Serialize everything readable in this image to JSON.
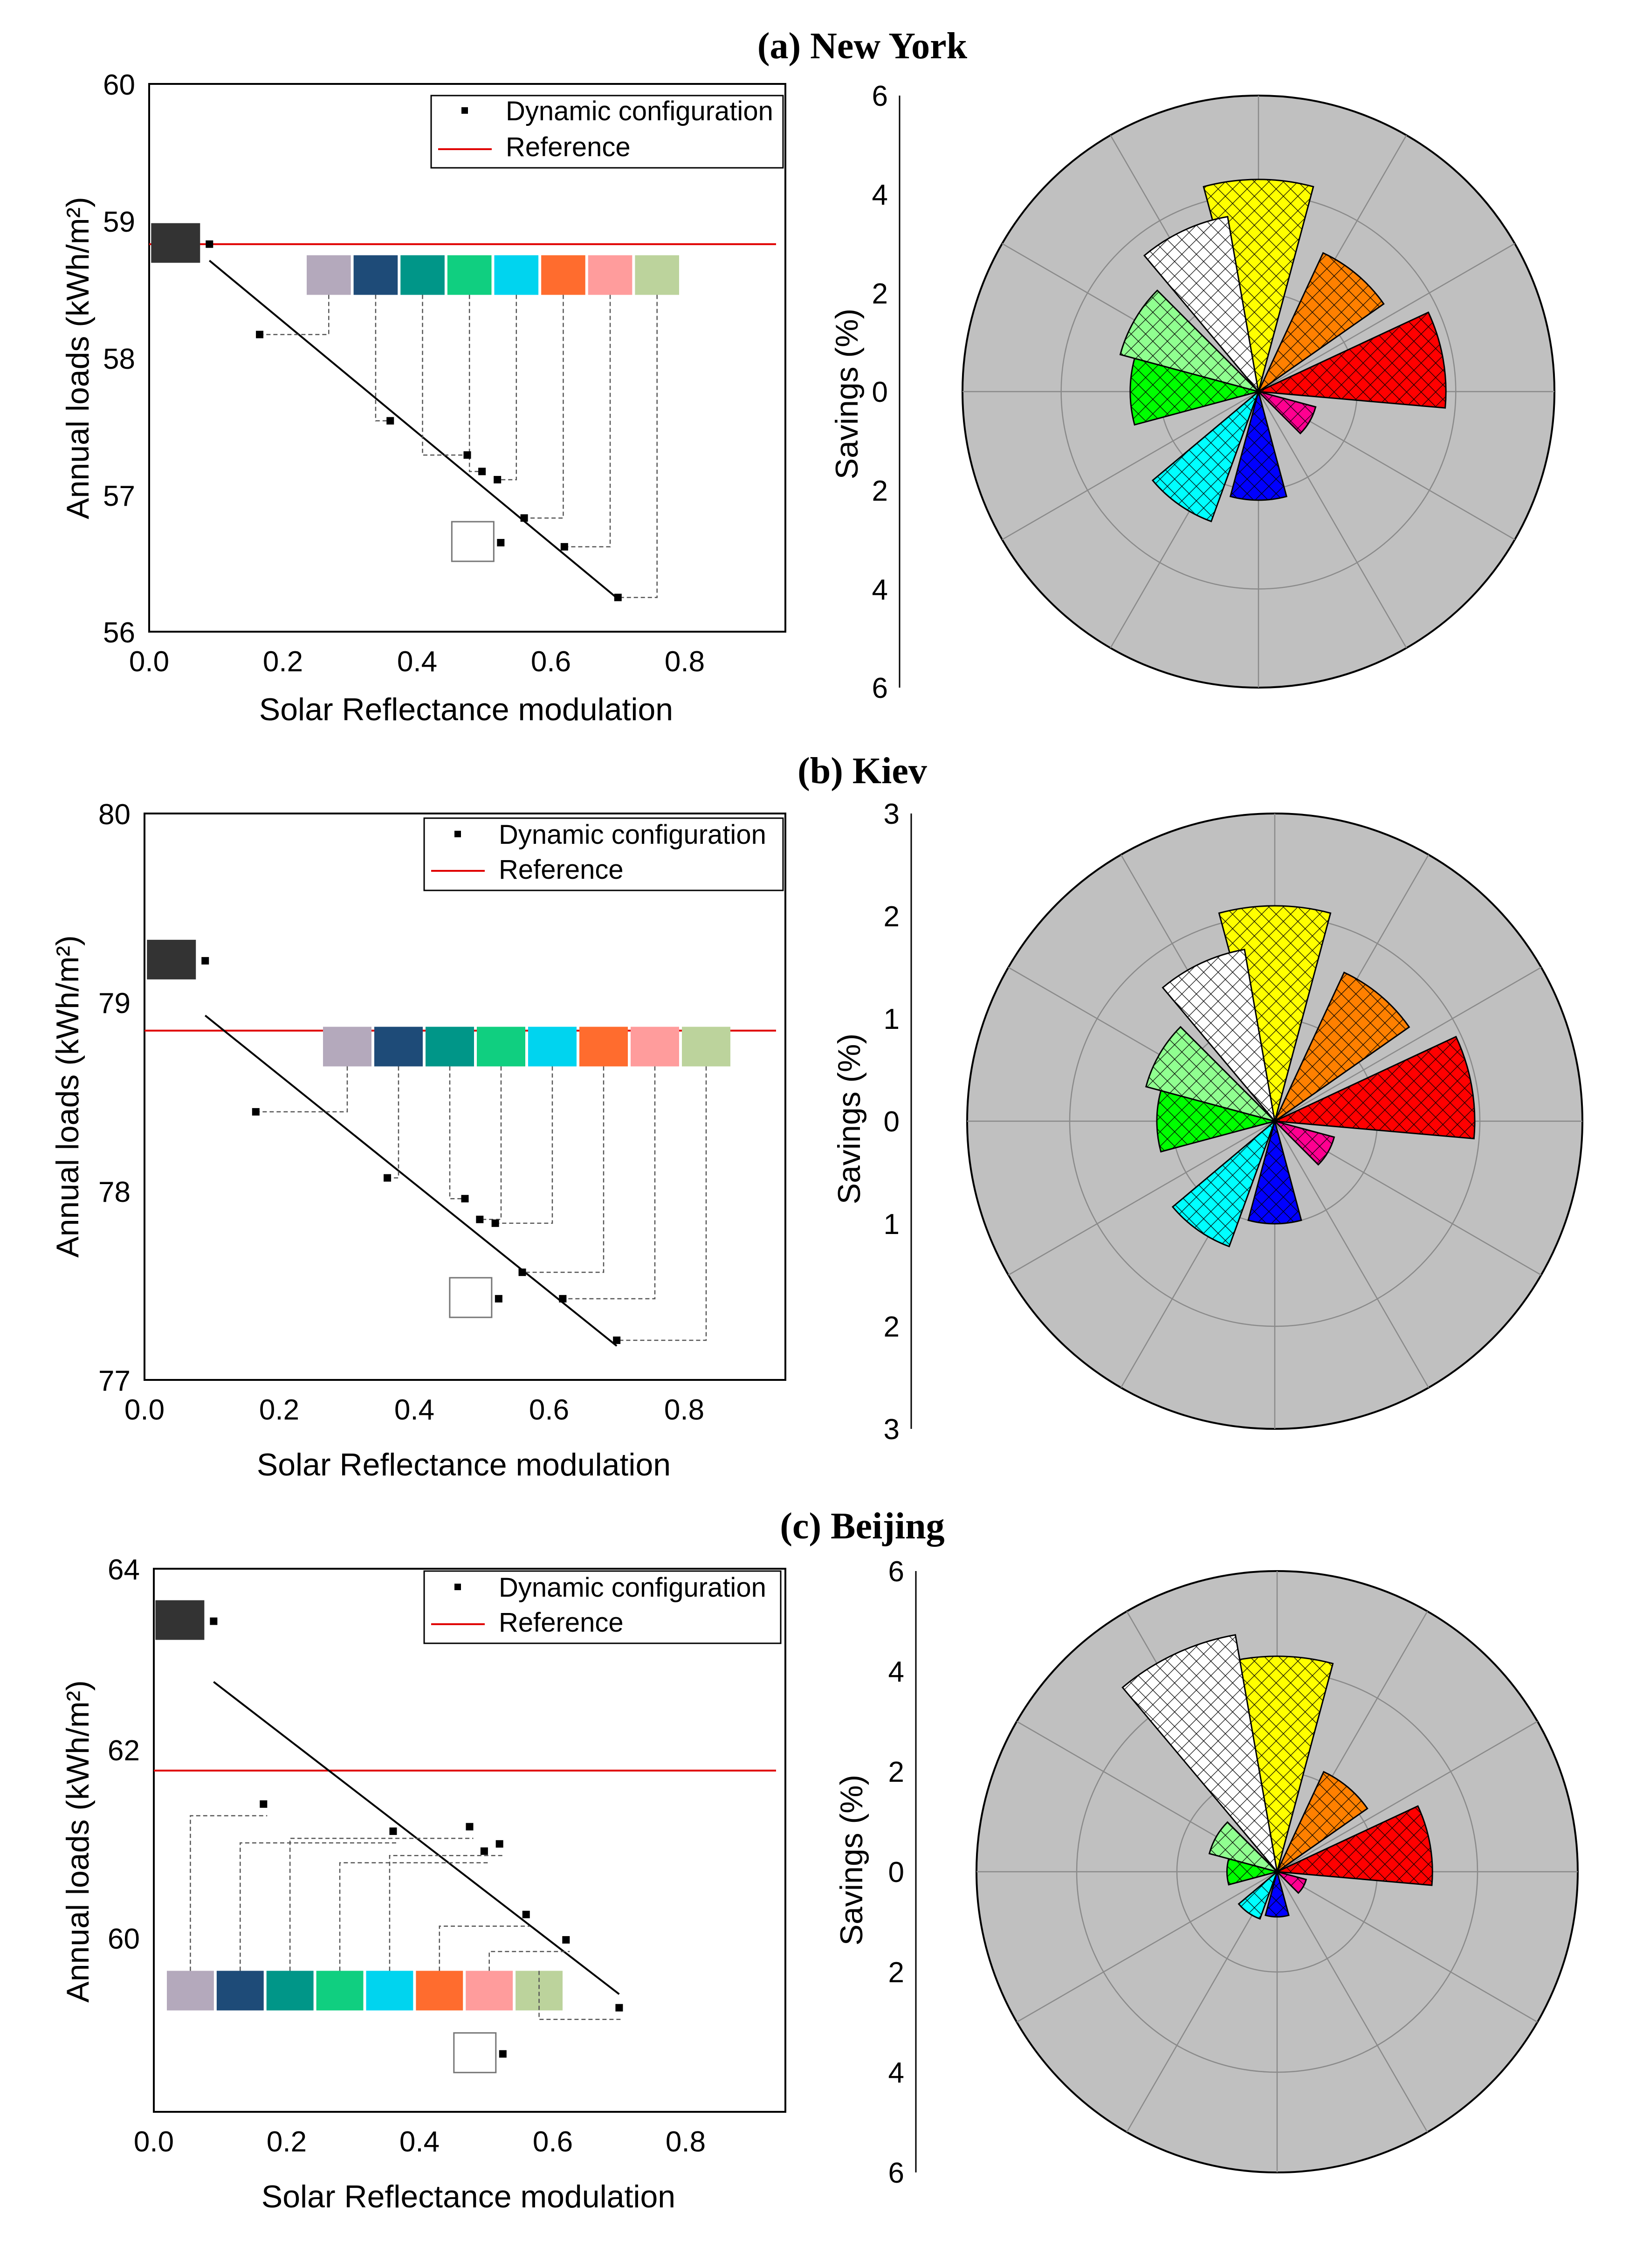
{
  "chart_data": [
    {
      "type": "scatter",
      "id": "a_line",
      "title": "(a) New York",
      "xlabel": "Solar Reflectance modulation",
      "ylabel": "Annual loads (kWh/m²)",
      "xlim": [
        0.0,
        0.95
      ],
      "ylim": [
        56,
        60
      ],
      "xticks": [
        "0.0",
        "0.2",
        "0.4",
        "0.6",
        "0.8"
      ],
      "yticks": [
        "56",
        "57",
        "58",
        "59",
        "60"
      ],
      "legend": {
        "dynamic": "Dynamic configuration",
        "reference": "Reference"
      },
      "reference": 58.83,
      "points": [
        {
          "x": 0.09,
          "y": 58.83,
          "color": "#333333"
        },
        {
          "x": 0.165,
          "y": 58.17,
          "color": "#b4a9bc"
        },
        {
          "x": 0.36,
          "y": 57.54,
          "color": "#1e4b78"
        },
        {
          "x": 0.475,
          "y": 57.29,
          "color": "#009688"
        },
        {
          "x": 0.497,
          "y": 57.17,
          "color": "#10cf80"
        },
        {
          "x": 0.52,
          "y": 57.11,
          "color": "#00d4ef"
        },
        {
          "x": 0.56,
          "y": 56.83,
          "color": "#ff6c2e"
        },
        {
          "x": 0.62,
          "y": 56.62,
          "color": "#ff9c9c"
        },
        {
          "x": 0.7,
          "y": 56.25,
          "color": "#bcd39c"
        },
        {
          "x": 0.525,
          "y": 56.65,
          "color": "#ffffff"
        }
      ],
      "fit": {
        "x": [
          0.09,
          0.7
        ],
        "y": [
          58.71,
          56.24
        ]
      }
    },
    {
      "type": "polar-bar",
      "id": "a_polar",
      "ylabel": "Savings (%)",
      "rmax": 6,
      "rticks": [
        "6",
        "4",
        "2",
        "0",
        "2",
        "4",
        "6"
      ],
      "sectors": [
        {
          "name": "yellow",
          "value": 4.3,
          "color": "#ffff00"
        },
        {
          "name": "orange",
          "value": 3.1,
          "color": "#ff8000"
        },
        {
          "name": "red",
          "value": 3.8,
          "color": "#ff0000"
        },
        {
          "name": "magenta",
          "value": 1.2,
          "color": "#ff0090"
        },
        {
          "name": "blue",
          "value": 2.2,
          "color": "#0000ff"
        },
        {
          "name": "cyan",
          "value": 2.8,
          "color": "#00ffff"
        },
        {
          "name": "green",
          "value": 2.6,
          "color": "#00ff00"
        },
        {
          "name": "light-green",
          "value": 2.9,
          "color": "#90ff90"
        },
        {
          "name": "white",
          "value": 3.6,
          "color": "#ffffff"
        }
      ]
    },
    {
      "type": "scatter",
      "id": "b_line",
      "title": "(b) Kiev",
      "xlabel": "Solar Reflectance modulation",
      "ylabel": "Annual loads (kWh/m²)",
      "xlim": [
        0.0,
        0.95
      ],
      "ylim": [
        77,
        80
      ],
      "xticks": [
        "0.0",
        "0.2",
        "0.4",
        "0.6",
        "0.8"
      ],
      "yticks": [
        "77",
        "78",
        "79",
        "80"
      ],
      "legend": {
        "dynamic": "Dynamic configuration",
        "reference": "Reference"
      },
      "reference": 78.85,
      "points": [
        {
          "x": 0.09,
          "y": 79.22,
          "color": "#333333"
        },
        {
          "x": 0.165,
          "y": 78.42,
          "color": "#b4a9bc"
        },
        {
          "x": 0.36,
          "y": 78.07,
          "color": "#1e4b78"
        },
        {
          "x": 0.475,
          "y": 77.96,
          "color": "#009688"
        },
        {
          "x": 0.497,
          "y": 77.85,
          "color": "#10cf80"
        },
        {
          "x": 0.52,
          "y": 77.83,
          "color": "#00d4ef"
        },
        {
          "x": 0.56,
          "y": 77.57,
          "color": "#ff6c2e"
        },
        {
          "x": 0.62,
          "y": 77.43,
          "color": "#ff9c9c"
        },
        {
          "x": 0.7,
          "y": 77.21,
          "color": "#bcd39c"
        },
        {
          "x": 0.525,
          "y": 77.43,
          "color": "#ffffff"
        }
      ],
      "fit": {
        "x": [
          0.09,
          0.7
        ],
        "y": [
          78.93,
          77.18
        ]
      }
    },
    {
      "type": "polar-bar",
      "id": "b_polar",
      "ylabel": "Savings (%)",
      "rmax": 3,
      "rticks": [
        "3",
        "2",
        "1",
        "0",
        "1",
        "2",
        "3"
      ],
      "sectors": [
        {
          "name": "yellow",
          "value": 2.1,
          "color": "#ffff00"
        },
        {
          "name": "orange",
          "value": 1.6,
          "color": "#ff8000"
        },
        {
          "name": "red",
          "value": 1.95,
          "color": "#ff0000"
        },
        {
          "name": "magenta",
          "value": 0.6,
          "color": "#ff0090"
        },
        {
          "name": "blue",
          "value": 1.0,
          "color": "#0000ff"
        },
        {
          "name": "cyan",
          "value": 1.3,
          "color": "#00ffff"
        },
        {
          "name": "green",
          "value": 1.15,
          "color": "#00ff00"
        },
        {
          "name": "light-green",
          "value": 1.3,
          "color": "#90ff90"
        },
        {
          "name": "white",
          "value": 1.7,
          "color": "#ffffff"
        }
      ]
    },
    {
      "type": "scatter",
      "id": "c_line",
      "title": "(c) Beijing",
      "xlabel": "Solar Reflectance modulation",
      "ylabel": "Annual loads (kWh/m²)",
      "xlim": [
        0.0,
        0.95
      ],
      "ylim": [
        58,
        64
      ],
      "xticks": [
        "0.0",
        "0.2",
        "0.4",
        "0.6",
        "0.8"
      ],
      "yticks": [
        "60",
        "62",
        "64"
      ],
      "ytick_values": [
        60,
        62,
        64
      ],
      "legend": {
        "dynamic": "Dynamic configuration",
        "reference": "Reference"
      },
      "reference": 61.77,
      "points": [
        {
          "x": 0.09,
          "y": 63.42,
          "color": "#333333"
        },
        {
          "x": 0.165,
          "y": 61.4,
          "color": "#b4a9bc"
        },
        {
          "x": 0.36,
          "y": 61.1,
          "color": "#1e4b78"
        },
        {
          "x": 0.475,
          "y": 61.15,
          "color": "#009688"
        },
        {
          "x": 0.497,
          "y": 60.88,
          "color": "#10cf80"
        },
        {
          "x": 0.52,
          "y": 60.96,
          "color": "#00d4ef"
        },
        {
          "x": 0.56,
          "y": 60.18,
          "color": "#ff6c2e"
        },
        {
          "x": 0.62,
          "y": 59.9,
          "color": "#ff9c9c"
        },
        {
          "x": 0.7,
          "y": 59.15,
          "color": "#bcd39c"
        },
        {
          "x": 0.525,
          "y": 58.64,
          "color": "#ffffff"
        }
      ],
      "fit": {
        "x": [
          0.09,
          0.7
        ],
        "y": [
          62.75,
          59.3
        ]
      }
    },
    {
      "type": "polar-bar",
      "id": "c_polar",
      "ylabel": "Savings (%)",
      "rmax": 6,
      "rticks": [
        "6",
        "4",
        "2",
        "0",
        "2",
        "4",
        "6"
      ],
      "sectors": [
        {
          "name": "yellow",
          "value": 4.3,
          "color": "#ffff00"
        },
        {
          "name": "orange",
          "value": 2.2,
          "color": "#ff8000"
        },
        {
          "name": "red",
          "value": 3.1,
          "color": "#ff0000"
        },
        {
          "name": "magenta",
          "value": 0.6,
          "color": "#ff0090"
        },
        {
          "name": "blue",
          "value": 0.9,
          "color": "#0000ff"
        },
        {
          "name": "cyan",
          "value": 1.0,
          "color": "#00ffff"
        },
        {
          "name": "green",
          "value": 1.0,
          "color": "#00ff00"
        },
        {
          "name": "light-green",
          "value": 1.4,
          "color": "#90ff90"
        },
        {
          "name": "white",
          "value": 4.8,
          "color": "#ffffff"
        }
      ]
    }
  ]
}
